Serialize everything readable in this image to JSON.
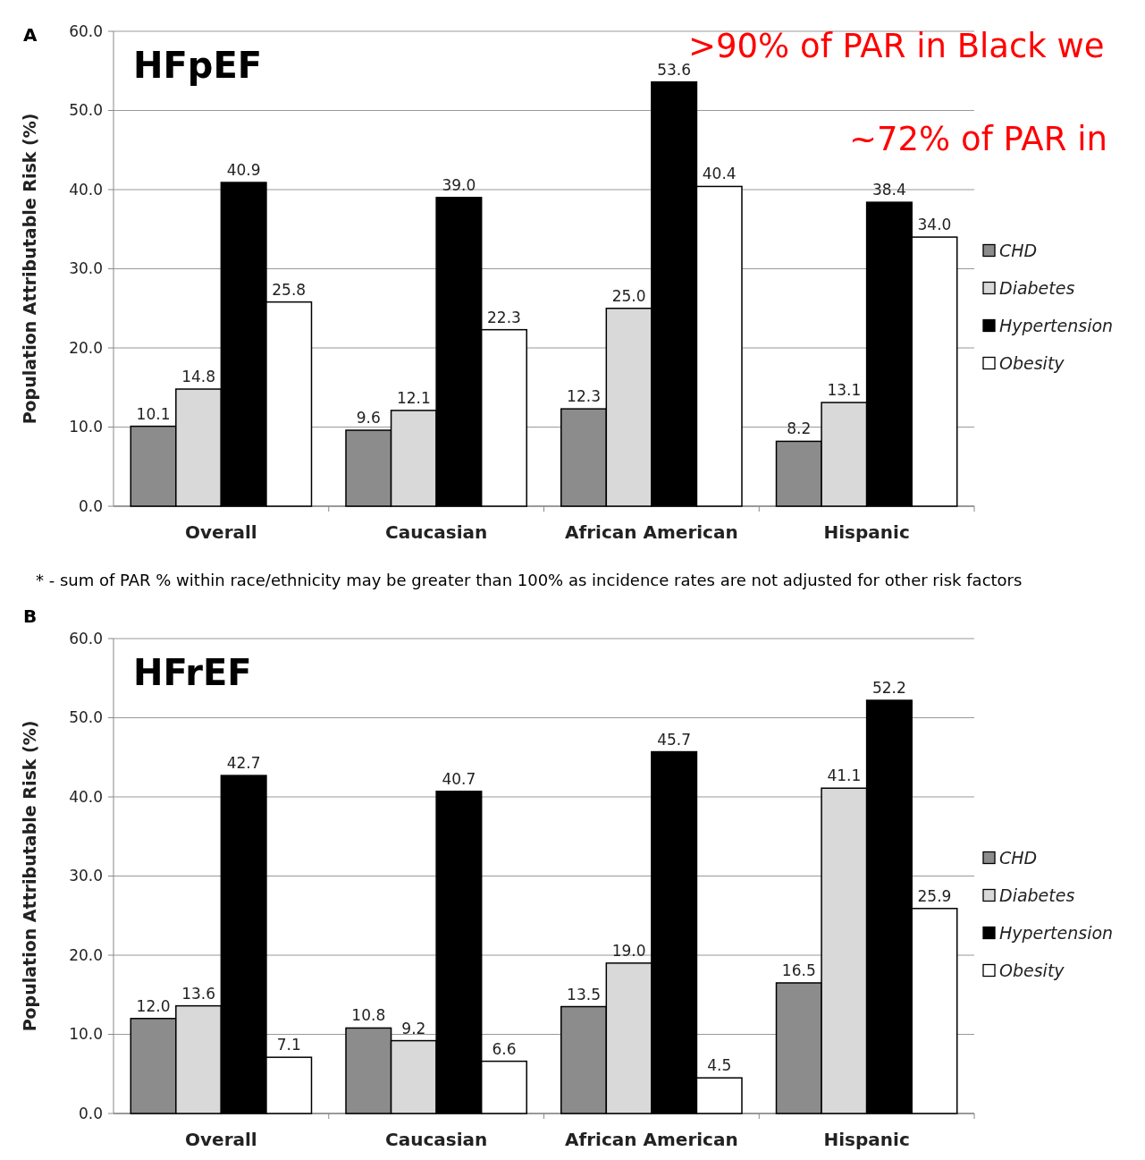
{
  "chart_data": [
    {
      "type": "bar",
      "title": "HFpEF",
      "ylabel": "Population Attributable Risk (%)",
      "categories": [
        "Overall",
        "Caucasian",
        "African American",
        "Hispanic"
      ],
      "series": [
        {
          "name": "CHD",
          "color": "#8c8c8c",
          "values": [
            10.1,
            9.6,
            12.3,
            8.2
          ],
          "value_labels": [
            "10.1",
            "9.6",
            "12.3",
            "8.2"
          ]
        },
        {
          "name": "Diabetes",
          "color": "#d9d9d9",
          "values": [
            14.8,
            12.1,
            25.0,
            13.1
          ],
          "value_labels": [
            "14.8",
            "12.1",
            "25.0",
            "13.1"
          ]
        },
        {
          "name": "Hypertension",
          "color": "#000000",
          "values": [
            40.9,
            39.0,
            53.6,
            38.4
          ],
          "value_labels": [
            "40.9",
            "39.0",
            "53.6",
            "38.4"
          ]
        },
        {
          "name": "Obesity",
          "color": "#ffffff",
          "values": [
            25.8,
            22.3,
            40.4,
            34.0
          ],
          "value_labels": [
            "25.8",
            "22.3",
            "40.4",
            "34.0"
          ]
        }
      ],
      "ylim": [
        0,
        60
      ],
      "yticks": [
        {
          "value": 0,
          "label": "0.0"
        },
        {
          "value": 10,
          "label": "10.0"
        },
        {
          "value": 20,
          "label": "20.0"
        },
        {
          "value": 30,
          "label": "30.0"
        },
        {
          "value": 40,
          "label": "40.0"
        },
        {
          "value": 50,
          "label": "50.0"
        },
        {
          "value": 60,
          "label": "60.0"
        }
      ],
      "grid": "y",
      "legend": "right",
      "annotations": [
        "A",
        ">90% of PAR in Black we",
        "~72% of PAR in",
        "* - sum of PAR % within race/ethnicity may be greater than 100% as incidence rates are not adjusted for other risk factors"
      ]
    },
    {
      "type": "bar",
      "title": "HFrEF",
      "ylabel": "Population Attributable Risk (%)",
      "categories": [
        "Overall",
        "Caucasian",
        "African American",
        "Hispanic"
      ],
      "series": [
        {
          "name": "CHD",
          "color": "#8c8c8c",
          "values": [
            12.0,
            10.8,
            13.5,
            16.5
          ],
          "value_labels": [
            "12.0",
            "10.8",
            "13.5",
            "16.5"
          ]
        },
        {
          "name": "Diabetes",
          "color": "#d9d9d9",
          "values": [
            13.6,
            9.2,
            19.0,
            41.1
          ],
          "value_labels": [
            "13.6",
            "9.2",
            "19.0",
            "41.1"
          ]
        },
        {
          "name": "Hypertension",
          "color": "#000000",
          "values": [
            42.7,
            40.7,
            45.7,
            52.2
          ],
          "value_labels": [
            "42.7",
            "40.7",
            "45.7",
            "52.2"
          ]
        },
        {
          "name": "Obesity",
          "color": "#ffffff",
          "values": [
            7.1,
            6.6,
            4.5,
            25.9
          ],
          "value_labels": [
            "7.1",
            "6.6",
            "4.5",
            "25.9"
          ]
        }
      ],
      "ylim": [
        0,
        60
      ],
      "yticks": [
        {
          "value": 0,
          "label": "0.0"
        },
        {
          "value": 10,
          "label": "10.0"
        },
        {
          "value": 20,
          "label": "20.0"
        },
        {
          "value": 30,
          "label": "30.0"
        },
        {
          "value": 40,
          "label": "40.0"
        },
        {
          "value": 50,
          "label": "50.0"
        },
        {
          "value": 60,
          "label": "60.0"
        }
      ],
      "grid": "y",
      "legend": "right",
      "annotations": [
        "B"
      ]
    }
  ]
}
